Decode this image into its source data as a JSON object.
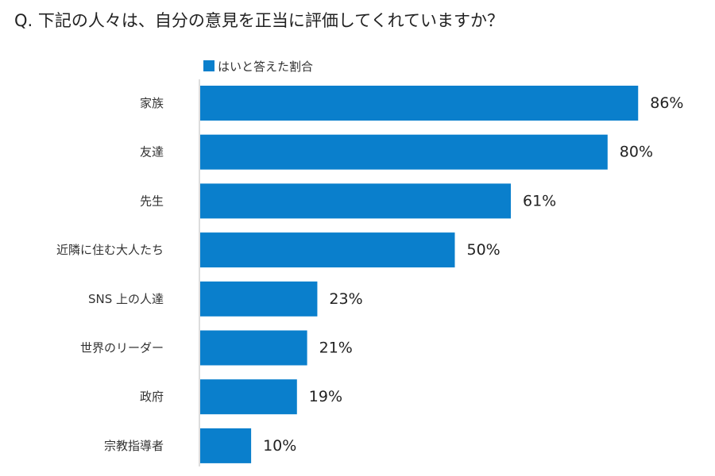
{
  "question": "Q. 下記の人々は、自分の意見を正当に評価してくれていますか？",
  "chart_data": {
    "type": "bar",
    "orientation": "horizontal",
    "title": "Q. 下記の人々は、自分の意見を正当に評価してくれていますか？",
    "legend": "はいと答えた割合",
    "categories": [
      "家族",
      "友達",
      "先生",
      "近隣に住む大人たち",
      "SNS 上の人達",
      "世界のリーダー",
      "政府",
      "宗教指導者"
    ],
    "values": [
      86,
      80,
      61,
      50,
      23,
      21,
      19,
      10
    ],
    "value_labels": [
      "86%",
      "80%",
      "61%",
      "50%",
      "23%",
      "21%",
      "19%",
      "10%"
    ],
    "unit": "%",
    "xlim": [
      0,
      100
    ],
    "grid": false,
    "color": "#0a7fcc",
    "axis_color": "#bbbbbb"
  }
}
